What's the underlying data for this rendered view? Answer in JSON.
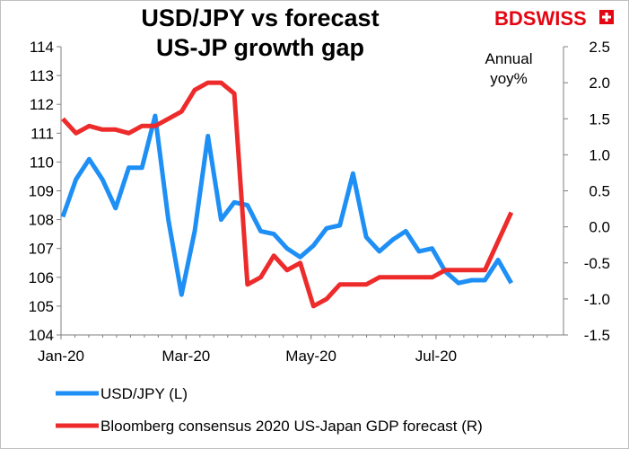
{
  "logo": {
    "text": "BDSWISS",
    "mark": "swiss-cross-icon",
    "color": "#e30613"
  },
  "chart_data": {
    "type": "line",
    "title": "USD/JPY vs forecast\nUS-JP growth gap",
    "title_lines": [
      "USD/JPY vs forecast",
      "US-JP growth gap"
    ],
    "annotation_lines": [
      "Annual",
      "yoy%"
    ],
    "x_tick_labels": [
      "Jan-20",
      "Mar-20",
      "May-20",
      "Jul-20"
    ],
    "y_left": {
      "range": [
        104,
        114
      ],
      "ticks": [
        "104",
        "105",
        "106",
        "107",
        "108",
        "109",
        "110",
        "111",
        "112",
        "113",
        "114"
      ]
    },
    "y_right": {
      "range": [
        -1.5,
        2.5
      ],
      "ticks": [
        "-1.5",
        "-1.0",
        "-0.5",
        "0.0",
        "0.5",
        "1.0",
        "1.5",
        "2.0",
        "2.5"
      ]
    },
    "n_points": 35,
    "grid": false,
    "legend_position": "bottom",
    "series": [
      {
        "name": "USD/JPY (L)",
        "axis": "left",
        "color": "#1e8ff5",
        "values": [
          108.1,
          109.4,
          110.1,
          109.4,
          108.4,
          109.8,
          109.8,
          111.6,
          108.0,
          105.4,
          107.6,
          110.9,
          108.0,
          108.6,
          108.5,
          107.6,
          107.5,
          107.0,
          106.7,
          107.1,
          107.7,
          107.8,
          109.6,
          107.4,
          106.9,
          107.3,
          107.6,
          106.9,
          107.0,
          106.2,
          105.8,
          105.9,
          105.9,
          106.6,
          105.8
        ]
      },
      {
        "name": "Bloomberg consensus 2020 US-Japan GDP forecast (R)",
        "axis": "right",
        "color": "#ee2b2b",
        "values": [
          1.5,
          1.3,
          1.4,
          1.35,
          1.35,
          1.3,
          1.4,
          1.4,
          1.5,
          1.6,
          1.9,
          2.0,
          2.0,
          1.85,
          -0.8,
          -0.7,
          -0.4,
          -0.6,
          -0.5,
          -1.1,
          -1.0,
          -0.8,
          -0.8,
          -0.8,
          -0.7,
          -0.7,
          -0.7,
          -0.7,
          -0.7,
          -0.6,
          -0.6,
          -0.6,
          -0.6,
          -0.2,
          0.2
        ]
      }
    ]
  }
}
